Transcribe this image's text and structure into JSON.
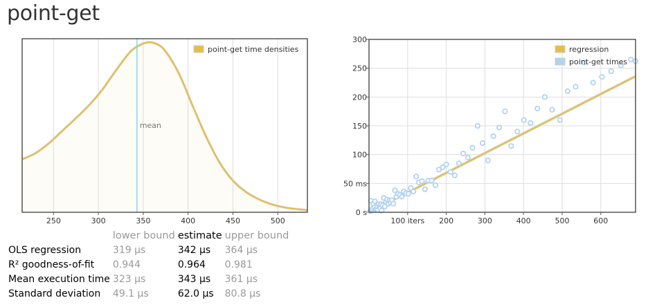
{
  "page": {
    "title": "point-get"
  },
  "colors": {
    "density": "#e5be45",
    "regression": "#e5be45",
    "points": "#b2d3f0",
    "mean_line": "#80d6ee",
    "grid": "#dddddd",
    "axis": "#555555"
  },
  "chart_data": [
    {
      "type": "area",
      "legend": {
        "entries": [
          "point-get time densities"
        ],
        "position": "top-right"
      },
      "xlim": [
        215,
        533
      ],
      "ylim": [
        0,
        1
      ],
      "grid": true,
      "x_ticks": [
        250,
        300,
        350,
        400,
        450,
        500
      ],
      "x": [
        215,
        230,
        245,
        260,
        275,
        290,
        305,
        320,
        335,
        345,
        355,
        365,
        375,
        390,
        405,
        420,
        435,
        450,
        465,
        480,
        495,
        510,
        525,
        533
      ],
      "values": [
        0.318,
        0.355,
        0.415,
        0.49,
        0.565,
        0.645,
        0.74,
        0.855,
        0.96,
        1.0,
        1.02,
        1.01,
        0.965,
        0.83,
        0.64,
        0.455,
        0.3,
        0.19,
        0.12,
        0.075,
        0.045,
        0.027,
        0.017,
        0.013
      ],
      "annotations": [
        {
          "type": "vline",
          "x": 343,
          "label": "mean"
        }
      ]
    },
    {
      "type": "scatter",
      "legend": {
        "entries": [
          "regression",
          "point-get times"
        ],
        "position": "top-right"
      },
      "xlim": [
        0,
        690
      ],
      "ylim": [
        0,
        300
      ],
      "grid": true,
      "x_ticks": [
        100,
        200,
        300,
        400,
        500,
        600
      ],
      "x_tick_labels": [
        "100 iters",
        "200",
        "300",
        "400",
        "500",
        "600"
      ],
      "y_ticks": [
        0,
        50,
        100,
        150,
        200,
        250,
        300
      ],
      "y_tick_labels": [
        "0 s",
        "50 ms",
        "100",
        "150",
        "200",
        "250",
        "300"
      ],
      "regression": {
        "slope": 0.342,
        "intercept": 0
      },
      "x": [
        3,
        5,
        7,
        9,
        11,
        13,
        15,
        17,
        19,
        21,
        23,
        25,
        27,
        29,
        31,
        33,
        35,
        38,
        41,
        44,
        47,
        50,
        53,
        56,
        59,
        63,
        67,
        71,
        75,
        80,
        85,
        90,
        96,
        102,
        108,
        115,
        122,
        129,
        137,
        145,
        153,
        162,
        172,
        181,
        191,
        200,
        211,
        222,
        233,
        244,
        256,
        268,
        281,
        294,
        308,
        322,
        337,
        352,
        368,
        384,
        401,
        418,
        436,
        455,
        474,
        494,
        514,
        535,
        557,
        580,
        603,
        627,
        652,
        678,
        690
      ],
      "values": [
        2,
        20,
        4,
        6,
        15,
        8,
        19,
        5,
        6,
        10,
        4,
        14,
        9,
        7,
        14,
        3,
        12,
        25,
        10,
        18,
        22,
        15,
        20,
        17,
        21,
        15,
        38,
        27,
        32,
        30,
        27,
        36,
        33,
        32,
        42,
        36,
        62,
        52,
        54,
        40,
        55,
        55,
        47,
        74,
        78,
        83,
        70,
        64,
        85,
        102,
        95,
        112,
        150,
        120,
        90,
        132,
        147,
        175,
        115,
        140,
        160,
        155,
        180,
        200,
        178,
        160,
        210,
        218,
        260,
        225,
        235,
        245,
        255,
        265,
        262
      ]
    }
  ],
  "stats": {
    "headers": [
      "lower bound",
      "estimate",
      "upper bound"
    ],
    "rows": [
      {
        "label": "OLS regression",
        "lower": "319 μs",
        "estimate": "342 μs",
        "upper": "364 μs"
      },
      {
        "label": "R² goodness-of-fit",
        "lower": "0.944",
        "estimate": "0.964",
        "upper": "0.981"
      },
      {
        "label": "Mean execution time",
        "lower": "323 μs",
        "estimate": "343 μs",
        "upper": "361 μs"
      },
      {
        "label": "Standard deviation",
        "lower": "49.1 μs",
        "estimate": "62.0 μs",
        "upper": "80.8 μs"
      }
    ]
  }
}
